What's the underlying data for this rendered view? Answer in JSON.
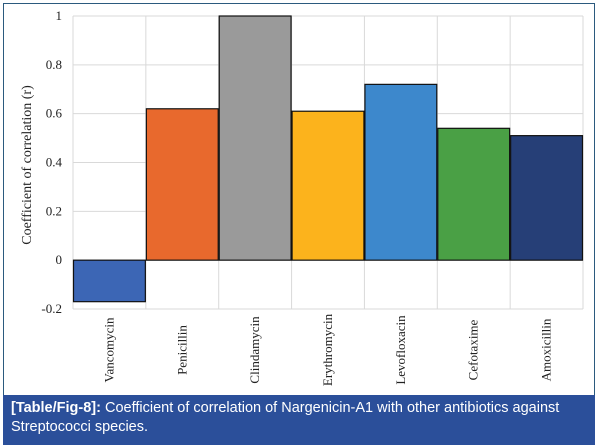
{
  "chart_data": {
    "type": "bar",
    "title": "",
    "xlabel": "",
    "ylabel": "Coefficient of correlation (r)",
    "ylim": [
      -0.2,
      1
    ],
    "yticks": [
      -0.2,
      0,
      0.2,
      0.4,
      0.6,
      0.8,
      1
    ],
    "ytick_labels": [
      "-0.2",
      "0",
      "0.2",
      "0.4",
      "0.6",
      "0.8",
      "1"
    ],
    "grid": true,
    "legend": "none",
    "categories": [
      "Vancomycin",
      "Penicillin",
      "Clindamycin",
      "Erythromycin",
      "Levofloxacin",
      "Cefotaxime",
      "Amoxicillin"
    ],
    "values": [
      -0.17,
      0.62,
      1.0,
      0.61,
      0.72,
      0.54,
      0.51
    ],
    "colors": [
      "#3c66b5",
      "#e8692d",
      "#9a9a9a",
      "#fcb31c",
      "#3d88cc",
      "#4aa045",
      "#263f77"
    ]
  },
  "caption": {
    "label": "[Table/Fig-8]:",
    "text": " Coefficient of correlation of Nargenicin-A1 with other antibiotics against Streptococci species."
  }
}
